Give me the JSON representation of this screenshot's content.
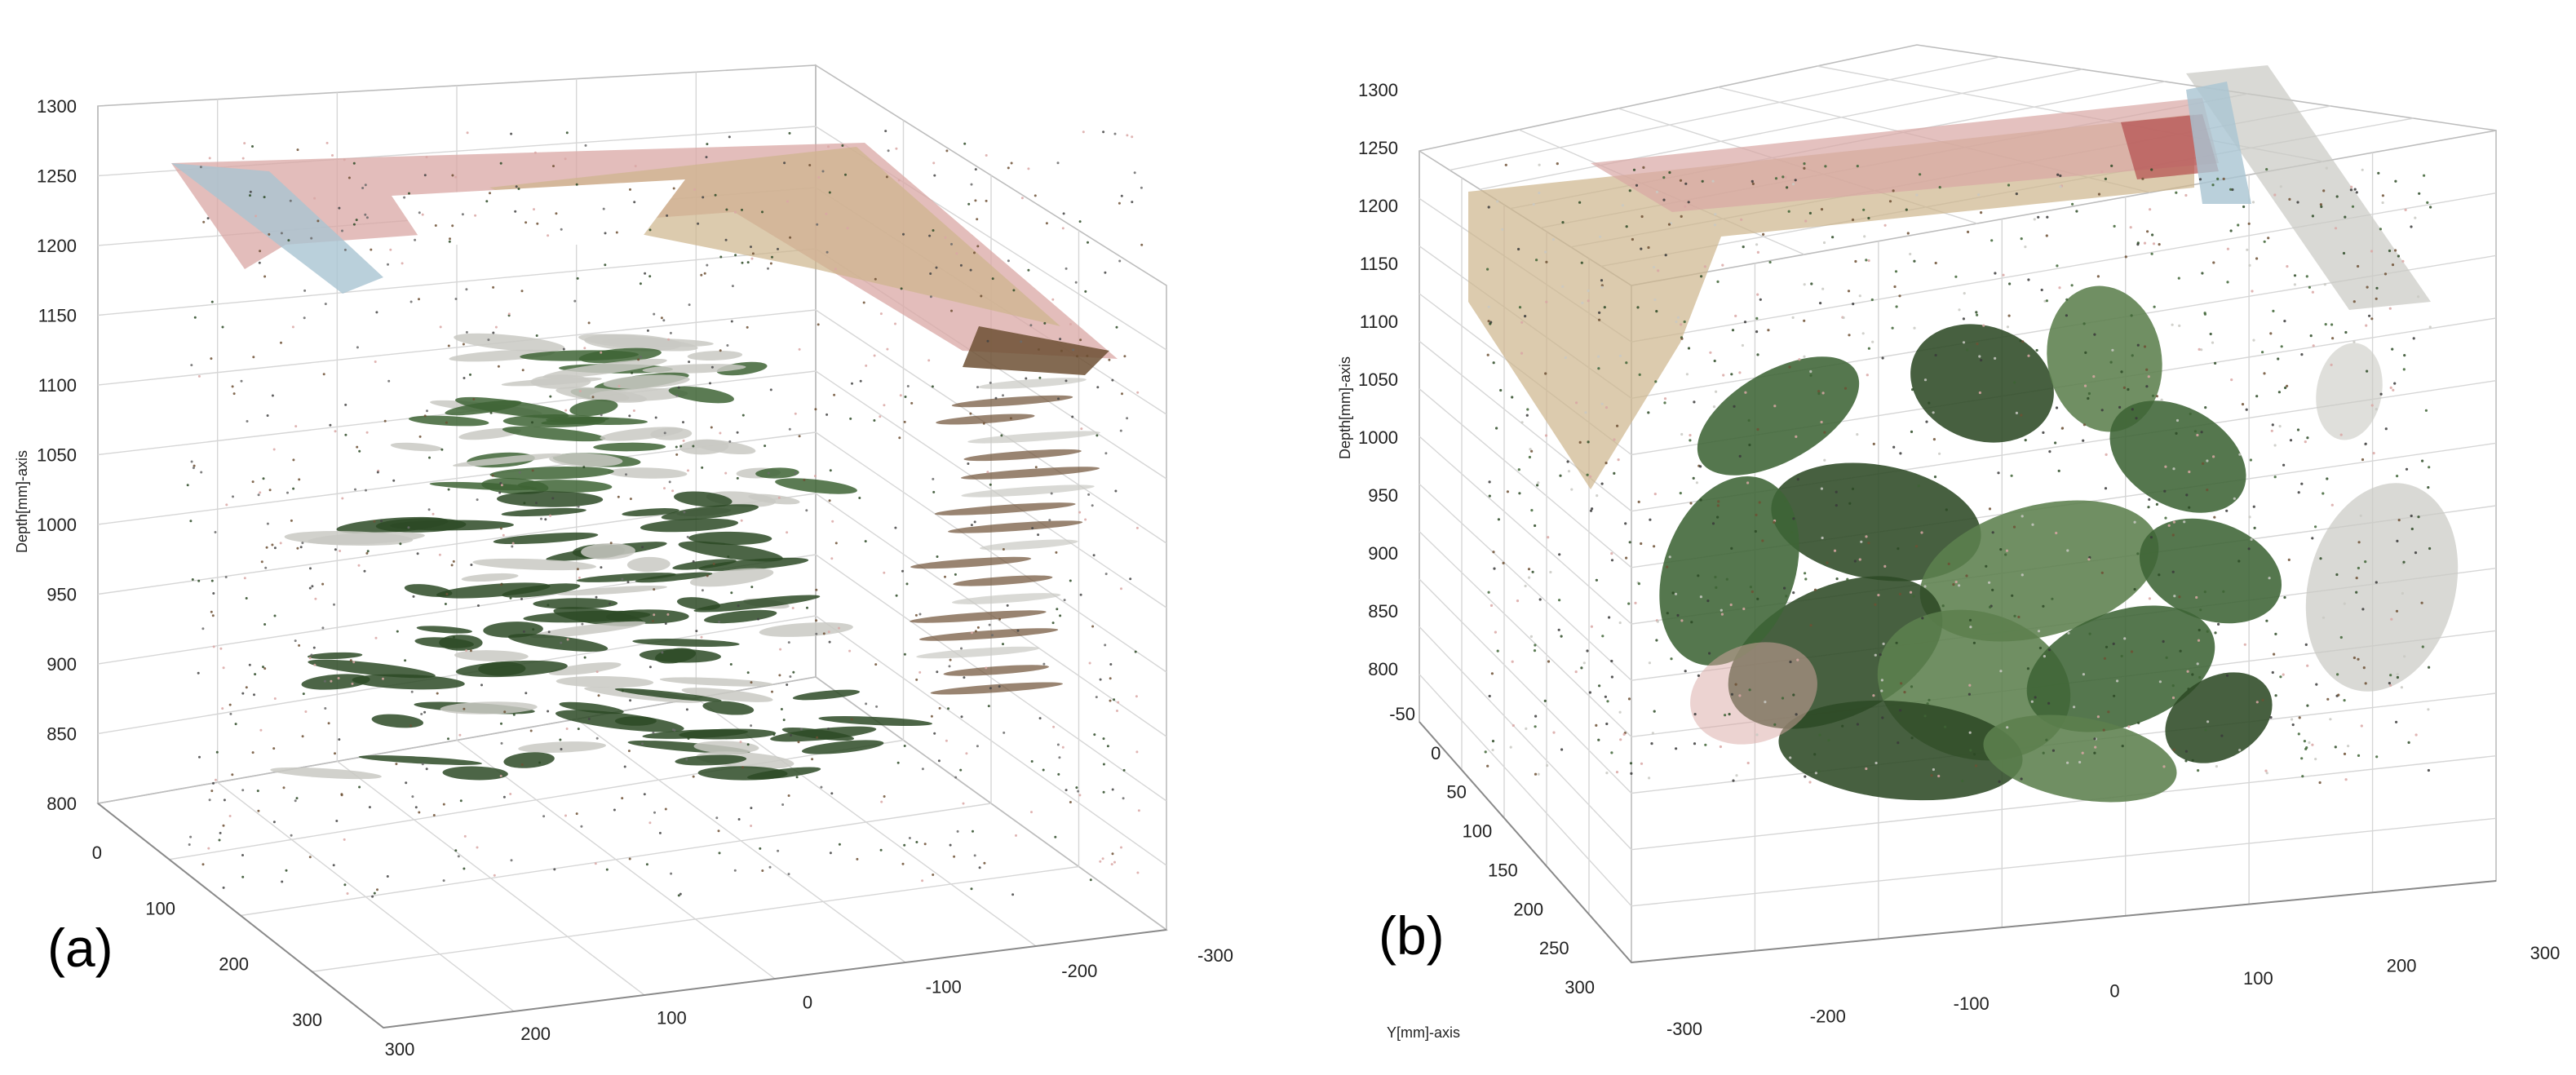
{
  "chart_data": [
    {
      "type": "scatter",
      "panel_label": "(a)",
      "zlabel": "Depth[mm]-axis",
      "ylabel": "",
      "z_ticks": [
        "800",
        "850",
        "900",
        "950",
        "1000",
        "1050",
        "1100",
        "1150",
        "1200",
        "1250",
        "1300"
      ],
      "y_ticks": [
        "0",
        "100",
        "200",
        "300"
      ],
      "x_ticks": [
        "300",
        "200",
        "100",
        "0",
        "-100",
        "-200",
        "-300"
      ],
      "zlim": [
        800,
        1300
      ],
      "grid": true
    },
    {
      "type": "scatter",
      "panel_label": "(b)",
      "zlabel": "Depth[mm]-axis",
      "ylabel": "Y[mm]-axis",
      "z_ticks": [
        "800",
        "850",
        "900",
        "950",
        "1000",
        "1050",
        "1100",
        "1150",
        "1200",
        "1250",
        "1300"
      ],
      "y_ticks": [
        "-50",
        "0",
        "50",
        "100",
        "150",
        "200",
        "250",
        "300"
      ],
      "x_ticks": [
        "-300",
        "-200",
        "-100",
        "0",
        "100",
        "200",
        "300"
      ],
      "zlim": [
        800,
        1300
      ],
      "grid": true
    }
  ],
  "colors": {
    "leaf_dark": "#2d4a26",
    "leaf_mid": "#3e6435",
    "leaf_light": "#5c7f4d",
    "grey_white": "#c9c9c3",
    "paper_pink": "#d9a7a4",
    "paper_tan": "#cdb58c",
    "paper_blue": "#a9c4d2",
    "brown": "#6d5034",
    "red": "#b34d4d"
  }
}
